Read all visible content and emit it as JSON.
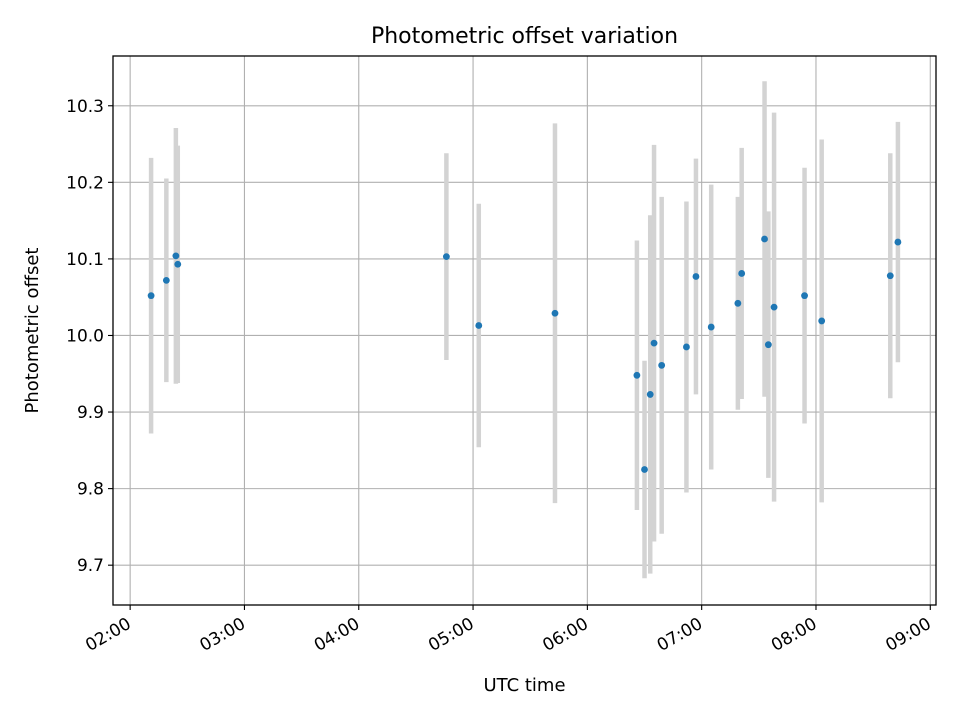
{
  "chart_data": {
    "type": "scatter",
    "title": "Photometric offset variation",
    "xlabel": "UTC time",
    "ylabel": "Photometric offset",
    "grid": true,
    "xlim": [
      "01:51",
      "09:03"
    ],
    "ylim": [
      9.648,
      10.365
    ],
    "xticks": [
      "02:00",
      "03:00",
      "04:00",
      "05:00",
      "06:00",
      "07:00",
      "08:00",
      "09:00"
    ],
    "yticks": [
      9.7,
      9.8,
      9.9,
      10.0,
      10.1,
      10.2,
      10.3
    ],
    "marker_color": "#1f77b4",
    "errorbar_color": "#d3d3d3",
    "points": [
      {
        "t": "02:11",
        "y": 10.052,
        "err": 0.18
      },
      {
        "t": "02:19",
        "y": 10.072,
        "err": 0.133
      },
      {
        "t": "02:24",
        "y": 10.104,
        "err": 0.167
      },
      {
        "t": "02:25",
        "y": 10.093,
        "err": 0.155
      },
      {
        "t": "04:46",
        "y": 10.103,
        "err": 0.135
      },
      {
        "t": "05:03",
        "y": 10.013,
        "err": 0.159
      },
      {
        "t": "05:43",
        "y": 10.029,
        "err": 0.248
      },
      {
        "t": "06:26",
        "y": 9.948,
        "err": 0.176
      },
      {
        "t": "06:30",
        "y": 9.825,
        "err": 0.142
      },
      {
        "t": "06:33",
        "y": 9.923,
        "err": 0.234
      },
      {
        "t": "06:35",
        "y": 9.99,
        "err": 0.259
      },
      {
        "t": "06:39",
        "y": 9.961,
        "err": 0.22
      },
      {
        "t": "06:52",
        "y": 9.985,
        "err": 0.19
      },
      {
        "t": "06:57",
        "y": 10.077,
        "err": 0.154
      },
      {
        "t": "07:05",
        "y": 10.011,
        "err": 0.186
      },
      {
        "t": "07:19",
        "y": 10.042,
        "err": 0.139
      },
      {
        "t": "07:21",
        "y": 10.081,
        "err": 0.164
      },
      {
        "t": "07:33",
        "y": 10.126,
        "err": 0.206
      },
      {
        "t": "07:35",
        "y": 9.988,
        "err": 0.174
      },
      {
        "t": "07:38",
        "y": 10.037,
        "err": 0.254
      },
      {
        "t": "07:54",
        "y": 10.052,
        "err": 0.167
      },
      {
        "t": "08:03",
        "y": 10.019,
        "err": 0.237
      },
      {
        "t": "08:39",
        "y": 10.078,
        "err": 0.16
      },
      {
        "t": "08:43",
        "y": 10.122,
        "err": 0.157
      }
    ]
  }
}
